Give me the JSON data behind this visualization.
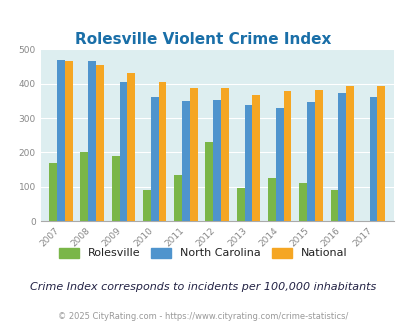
{
  "title": "Rolesville Violent Crime Index",
  "years": [
    2007,
    2008,
    2009,
    2010,
    2011,
    2012,
    2013,
    2014,
    2015,
    2016,
    2017
  ],
  "rolesville": [
    170,
    202,
    190,
    90,
    135,
    230,
    95,
    127,
    112,
    90,
    0
  ],
  "north_carolina": [
    468,
    467,
    405,
    363,
    350,
    354,
    338,
    329,
    348,
    373,
    362
  ],
  "national": [
    467,
    454,
    432,
    405,
    388,
    388,
    368,
    378,
    383,
    395,
    394
  ],
  "color_rolesville": "#7ab648",
  "color_nc": "#4f94cd",
  "color_national": "#f5a623",
  "background_color": "#ddeef0",
  "fig_background": "#ffffff",
  "ylim": [
    0,
    500
  ],
  "yticks": [
    0,
    100,
    200,
    300,
    400,
    500
  ],
  "title_color": "#1a6fa8",
  "title_fontsize": 11,
  "tick_color": "#888888",
  "tick_fontsize": 6.5,
  "footer_note": "Crime Index corresponds to incidents per 100,000 inhabitants",
  "copyright": "© 2025 CityRating.com - https://www.cityrating.com/crime-statistics/",
  "legend_labels": [
    "Rolesville",
    "North Carolina",
    "National"
  ],
  "legend_fontsize": 8,
  "footer_fontsize": 8,
  "copyright_fontsize": 6,
  "footer_color": "#222244",
  "copyright_color": "#999999",
  "bar_width": 0.25
}
